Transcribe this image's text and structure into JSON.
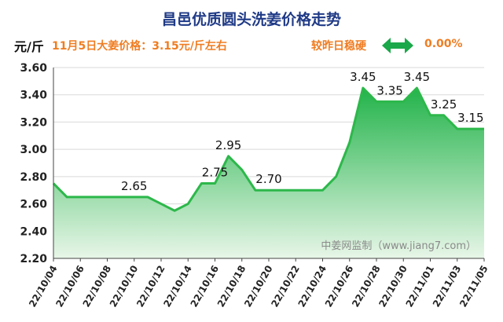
{
  "header": {
    "title": "昌邑优质圆头洗姜价格走势",
    "unit": "元/斤",
    "price_note": "11月5日大姜价格：3.15元/斤左右",
    "trend_label": "较昨日稳硬",
    "trend_icon": "double-arrow-icon",
    "trend_value": "0.00%"
  },
  "colors": {
    "title": "#1f3a86",
    "accent": "#ef7d22",
    "line": "#2db84b",
    "fill_top": "#22b34a",
    "fill_bottom": "#e8f6e8",
    "arrow": "#1aa84a"
  },
  "chart_data": {
    "type": "area",
    "title": "昌邑优质圆头洗姜价格走势",
    "ylabel": "元/斤",
    "ylim": [
      2.2,
      3.6
    ],
    "yticks": [
      "2.20",
      "2.40",
      "2.60",
      "2.80",
      "3.00",
      "3.20",
      "3.40",
      "3.60"
    ],
    "grid": true,
    "watermark": "中姜网监制（www.jiang7.com）",
    "x": [
      "22/10/04",
      "22/10/05",
      "22/10/06",
      "22/10/07",
      "22/10/08",
      "22/10/09",
      "22/10/10",
      "22/10/11",
      "22/10/12",
      "22/10/13",
      "22/10/14",
      "22/10/15",
      "22/10/16",
      "22/10/17",
      "22/10/18",
      "22/10/19",
      "22/10/20",
      "22/10/21",
      "22/10/22",
      "22/10/23",
      "22/10/24",
      "22/10/25",
      "22/10/26",
      "22/10/27",
      "22/10/28",
      "22/10/29",
      "22/10/30",
      "22/10/31",
      "22/11/01",
      "22/11/02",
      "22/11/03",
      "22/11/04",
      "22/11/05"
    ],
    "xtick_labels": [
      "22/10/04",
      "22/10/06",
      "22/10/08",
      "22/10/10",
      "22/10/12",
      "22/10/14",
      "22/10/16",
      "22/10/18",
      "22/10/20",
      "22/10/22",
      "22/10/24",
      "22/10/26",
      "22/10/28",
      "22/10/30",
      "22/11/01",
      "22/11/03",
      "22/11/05"
    ],
    "values": [
      2.75,
      2.65,
      2.65,
      2.65,
      2.65,
      2.65,
      2.65,
      2.65,
      2.6,
      2.55,
      2.6,
      2.75,
      2.75,
      2.95,
      2.85,
      2.7,
      2.7,
      2.7,
      2.7,
      2.7,
      2.7,
      2.8,
      3.05,
      3.45,
      3.35,
      3.35,
      3.35,
      3.45,
      3.25,
      3.25,
      3.15,
      3.15,
      3.15
    ],
    "data_labels": [
      {
        "index": 6,
        "text": "2.65"
      },
      {
        "index": 12,
        "text": "2.75"
      },
      {
        "index": 13,
        "text": "2.95"
      },
      {
        "index": 16,
        "text": "2.70"
      },
      {
        "index": 23,
        "text": "3.45"
      },
      {
        "index": 25,
        "text": "3.35"
      },
      {
        "index": 27,
        "text": "3.45"
      },
      {
        "index": 29,
        "text": "3.25"
      },
      {
        "index": 31,
        "text": "3.15"
      }
    ]
  }
}
